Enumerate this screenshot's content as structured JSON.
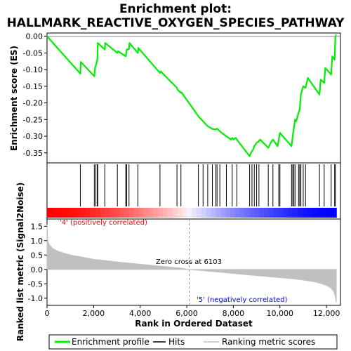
{
  "chart_data": {
    "type": "line",
    "title_line1": "Enrichment plot:",
    "title_line2": "HALLMARK_REACTIVE_OXYGEN_SPECIES_PATHWAY",
    "es_panel": {
      "ylabel": "Enrichment score (ES)",
      "ylim": [
        -0.38,
        0.01
      ],
      "yticks": [
        0.0,
        -0.05,
        -0.1,
        -0.15,
        -0.2,
        -0.25,
        -0.3,
        -0.35
      ],
      "ytick_labels": [
        "0.00",
        "-0.05",
        "-0.10",
        "-0.15",
        "-0.20",
        "-0.25",
        "-0.30",
        "-0.35"
      ],
      "series": [
        {
          "name": "Enrichment profile",
          "color": "#00ee00",
          "x": [
            0,
            1430,
            1450,
            2030,
            2060,
            2100,
            2160,
            2180,
            2480,
            2500,
            3020,
            3050,
            3380,
            3420,
            3520,
            3540,
            3900,
            3920,
            4850,
            4880,
            5580,
            5600,
            5750,
            5770,
            6500,
            6600,
            6700,
            6900,
            7100,
            7250,
            7300,
            7420,
            7500,
            7600,
            7700,
            7900,
            7950,
            8000,
            8100,
            8150,
            8700,
            8750,
            8800,
            8850,
            8900,
            8950,
            9000,
            9100,
            9150,
            9500,
            9600,
            9700,
            9900,
            9950,
            10000,
            10500,
            10550,
            10600,
            10650,
            10700,
            10800,
            10850,
            10900,
            11000,
            11100,
            11200,
            11700,
            11750,
            11900,
            11950,
            12200,
            12250,
            12350,
            12380,
            12420
          ],
          "y": [
            0.0,
            -0.112,
            -0.077,
            -0.12,
            -0.097,
            -0.087,
            -0.07,
            -0.02,
            -0.04,
            -0.02,
            -0.05,
            -0.045,
            -0.06,
            -0.04,
            -0.038,
            -0.02,
            -0.05,
            -0.035,
            -0.11,
            -0.105,
            -0.155,
            -0.16,
            -0.17,
            -0.168,
            -0.24,
            -0.248,
            -0.255,
            -0.27,
            -0.278,
            -0.28,
            -0.277,
            -0.285,
            -0.29,
            -0.295,
            -0.3,
            -0.31,
            -0.305,
            -0.31,
            -0.305,
            -0.31,
            -0.36,
            -0.35,
            -0.345,
            -0.34,
            -0.33,
            -0.325,
            -0.32,
            -0.315,
            -0.31,
            -0.335,
            -0.32,
            -0.31,
            -0.33,
            -0.31,
            -0.29,
            -0.33,
            -0.3,
            -0.275,
            -0.25,
            -0.255,
            -0.23,
            -0.22,
            -0.175,
            -0.15,
            -0.155,
            -0.125,
            -0.175,
            -0.13,
            -0.14,
            -0.095,
            -0.115,
            -0.06,
            -0.07,
            0.0,
            0.005
          ]
        }
      ]
    },
    "hits_panel": {
      "hit_positions": [
        1430,
        2030,
        2100,
        2160,
        2180,
        2480,
        3020,
        3380,
        3420,
        3520,
        3900,
        4850,
        5580,
        5750,
        6500,
        6700,
        6900,
        7100,
        7250,
        7300,
        7420,
        7700,
        7950,
        8150,
        8700,
        8800,
        8900,
        9000,
        9100,
        9500,
        9700,
        9950,
        10000,
        10500,
        10550,
        10600,
        10650,
        10800,
        10850,
        10900,
        11000,
        11100,
        11700,
        11900,
        12200,
        12350,
        12380
      ]
    },
    "metric_panel": {
      "ylabel": "Ranked list metric (Signal2Noise)",
      "ylim": [
        -1.25,
        1.75
      ],
      "yticks": [
        1.5,
        1.0,
        0.5,
        0.0,
        -0.5,
        -1.0
      ],
      "ytick_labels": [
        "1.5",
        "1.0",
        "0.5",
        "0.0",
        "-0.5",
        "-1.0"
      ],
      "zero_cross_label": "Zero cross at 6103",
      "zero_cross_rank": 6103,
      "pos_label": "'4' (positively correlated)",
      "neg_label": "'5' (negatively correlated)",
      "pos_color": "#ff0000",
      "neg_color": "#0000ff",
      "fill_color": "#c0c0c0",
      "metric_x": [
        0,
        30,
        100,
        250,
        500,
        1000,
        2000,
        3000,
        4000,
        5000,
        5800,
        6103,
        6500,
        7500,
        8500,
        9500,
        10500,
        11000,
        11500,
        11800,
        12000,
        12150,
        12250,
        12320,
        12380,
        12420
      ],
      "metric_y": [
        1.55,
        1.0,
        0.85,
        0.72,
        0.62,
        0.5,
        0.35,
        0.26,
        0.18,
        0.1,
        0.04,
        0.0,
        -0.03,
        -0.1,
        -0.18,
        -0.25,
        -0.32,
        -0.37,
        -0.43,
        -0.5,
        -0.56,
        -0.62,
        -0.7,
        -0.78,
        -0.95,
        -1.15
      ]
    },
    "xaxis": {
      "label": "Rank in Ordered Dataset",
      "xlim": [
        0,
        12600
      ],
      "ticks": [
        0,
        2000,
        4000,
        6000,
        8000,
        10000,
        12000
      ],
      "tick_labels": [
        "0",
        "2,000",
        "4,000",
        "6,000",
        "8,000",
        "10,000",
        "12,000"
      ]
    },
    "legend": {
      "position": "bottom",
      "entries": [
        {
          "label": "Enrichment profile",
          "color": "#00ee00"
        },
        {
          "label": "Hits",
          "color": "#000000"
        },
        {
          "label": "Ranking metric scores",
          "color": "#c0c0c0"
        }
      ]
    }
  }
}
